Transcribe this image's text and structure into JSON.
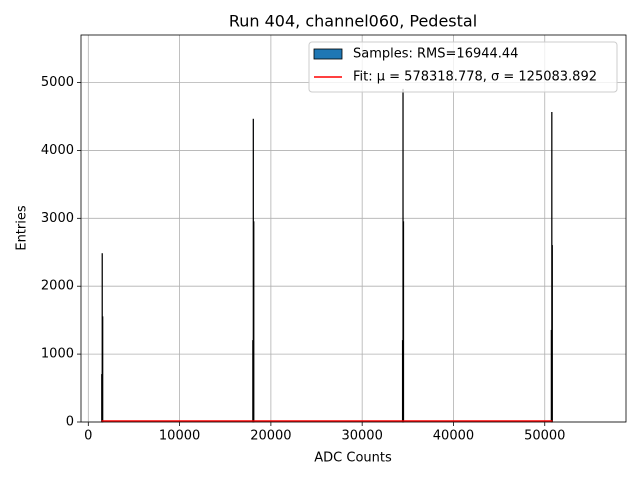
{
  "chart_data": {
    "type": "histogram",
    "title": "Run 404, channel060, Pedestal",
    "xlabel": "ADC Counts",
    "ylabel": "Entries",
    "xlim": [
      -800,
      58900
    ],
    "ylim": [
      0,
      5700
    ],
    "xticks": [
      0,
      10000,
      20000,
      30000,
      40000,
      50000
    ],
    "yticks": [
      0,
      1000,
      2000,
      3000,
      4000,
      5000
    ],
    "grid": true,
    "legend": "upper right",
    "hist": {
      "name": "Samples: RMS=16944.44",
      "color": "#1f77b4",
      "edgecolor": "#000000",
      "bins": [
        1450,
        1500,
        1550,
        1600,
        18000,
        18050,
        18100,
        18150,
        34400,
        34450,
        34500,
        34550,
        50700,
        50750,
        50800,
        50850
      ],
      "counts": [
        700,
        2480,
        1550,
        0,
        1200,
        4460,
        2950,
        0,
        1200,
        4900,
        2950,
        0,
        1350,
        4560,
        2600
      ]
    },
    "fit": {
      "name": "Fit: μ = 578318.778, σ = 125083.892",
      "color": "#ff0000",
      "x": [
        1450,
        50850
      ],
      "values": [
        0,
        0
      ]
    }
  }
}
